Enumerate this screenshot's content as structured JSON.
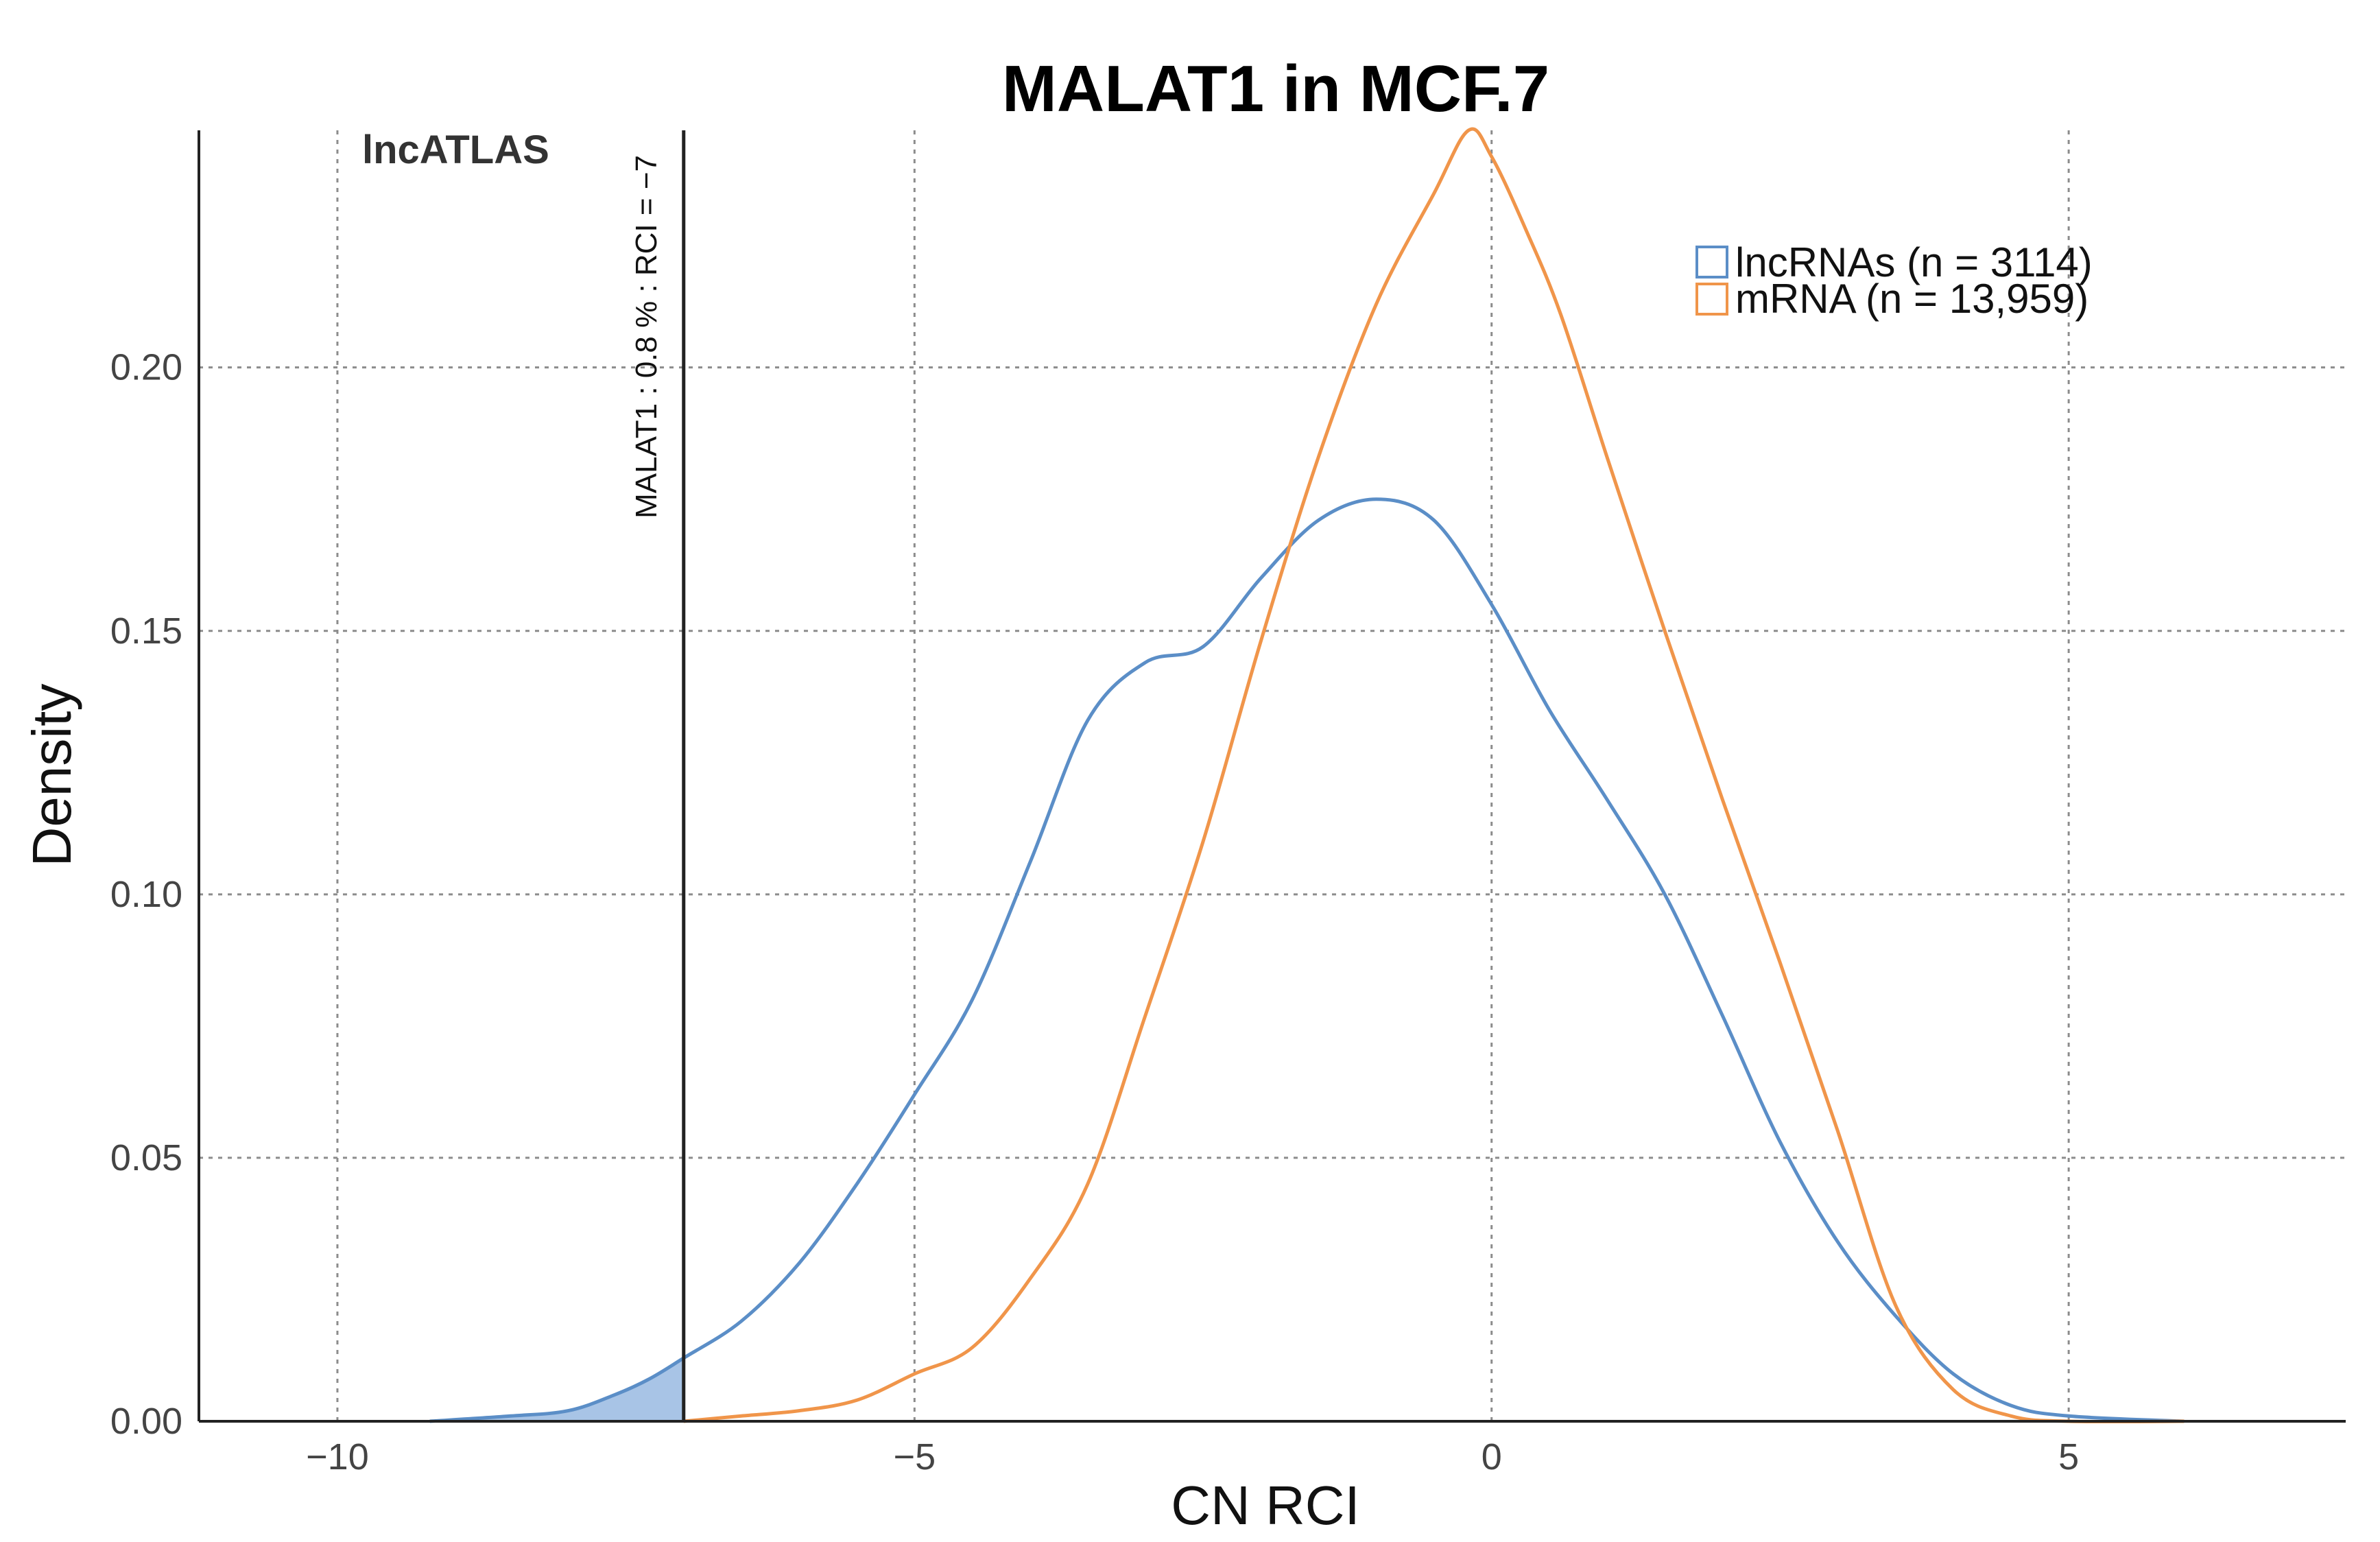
{
  "chart_data": {
    "type": "line",
    "title": "MALAT1 in MCF.7",
    "xlabel": "CN RCI",
    "ylabel": "Density",
    "xlim": [
      -11.2,
      7.4
    ],
    "ylim": [
      0,
      0.245
    ],
    "x_ticks": [
      -10,
      -5,
      0,
      5
    ],
    "x_tick_labels": [
      "−10",
      "−5",
      "0",
      "5"
    ],
    "y_ticks": [
      0,
      0.05,
      0.1,
      0.15,
      0.2
    ],
    "y_tick_labels": [
      "0.00",
      "0.05",
      "0.10",
      "0.15",
      "0.20"
    ],
    "grid": true,
    "source_label": "lncATLAS",
    "marker": {
      "x": -7,
      "label": "MALAT1 : 0.8 % : RCI = −7",
      "shaded_series": "lncRNAs"
    },
    "legend_position": "top-right",
    "series": [
      {
        "name": "lncRNAs",
        "legend": "lncRNAs (n = 3114)",
        "color": "#5b8ec7",
        "fill": "#a8c4e6",
        "points": [
          [
            -9.2,
            0.0
          ],
          [
            -8.5,
            0.001
          ],
          [
            -8.0,
            0.002
          ],
          [
            -7.6,
            0.005
          ],
          [
            -7.3,
            0.008
          ],
          [
            -7.0,
            0.012
          ],
          [
            -6.5,
            0.019
          ],
          [
            -6.0,
            0.03
          ],
          [
            -5.5,
            0.045
          ],
          [
            -5.0,
            0.062
          ],
          [
            -4.5,
            0.08
          ],
          [
            -4.0,
            0.106
          ],
          [
            -3.5,
            0.133
          ],
          [
            -3.0,
            0.144
          ],
          [
            -2.5,
            0.147
          ],
          [
            -2.0,
            0.16
          ],
          [
            -1.5,
            0.171
          ],
          [
            -1.0,
            0.175
          ],
          [
            -0.5,
            0.171
          ],
          [
            0.0,
            0.155
          ],
          [
            0.5,
            0.135
          ],
          [
            1.0,
            0.118
          ],
          [
            1.5,
            0.1
          ],
          [
            2.0,
            0.077
          ],
          [
            2.5,
            0.053
          ],
          [
            3.0,
            0.034
          ],
          [
            3.5,
            0.02
          ],
          [
            4.0,
            0.009
          ],
          [
            4.5,
            0.003
          ],
          [
            5.0,
            0.001
          ],
          [
            6.0,
            0.0
          ]
        ]
      },
      {
        "name": "mRNA",
        "legend": "mRNA (n = 13,959)",
        "color": "#f0954a",
        "points": [
          [
            -7.0,
            0.0
          ],
          [
            -6.5,
            0.001
          ],
          [
            -6.0,
            0.002
          ],
          [
            -5.5,
            0.004
          ],
          [
            -5.0,
            0.009
          ],
          [
            -4.5,
            0.014
          ],
          [
            -4.0,
            0.027
          ],
          [
            -3.5,
            0.045
          ],
          [
            -3.0,
            0.077
          ],
          [
            -2.5,
            0.11
          ],
          [
            -2.0,
            0.148
          ],
          [
            -1.5,
            0.183
          ],
          [
            -1.0,
            0.212
          ],
          [
            -0.5,
            0.233
          ],
          [
            -0.2,
            0.245
          ],
          [
            0.0,
            0.24
          ],
          [
            0.3,
            0.226
          ],
          [
            0.6,
            0.21
          ],
          [
            1.0,
            0.183
          ],
          [
            1.5,
            0.15
          ],
          [
            2.0,
            0.118
          ],
          [
            2.5,
            0.087
          ],
          [
            3.0,
            0.055
          ],
          [
            3.5,
            0.022
          ],
          [
            4.0,
            0.006
          ],
          [
            4.5,
            0.001
          ],
          [
            5.0,
            0.0
          ],
          [
            6.0,
            0.0
          ]
        ]
      }
    ]
  }
}
